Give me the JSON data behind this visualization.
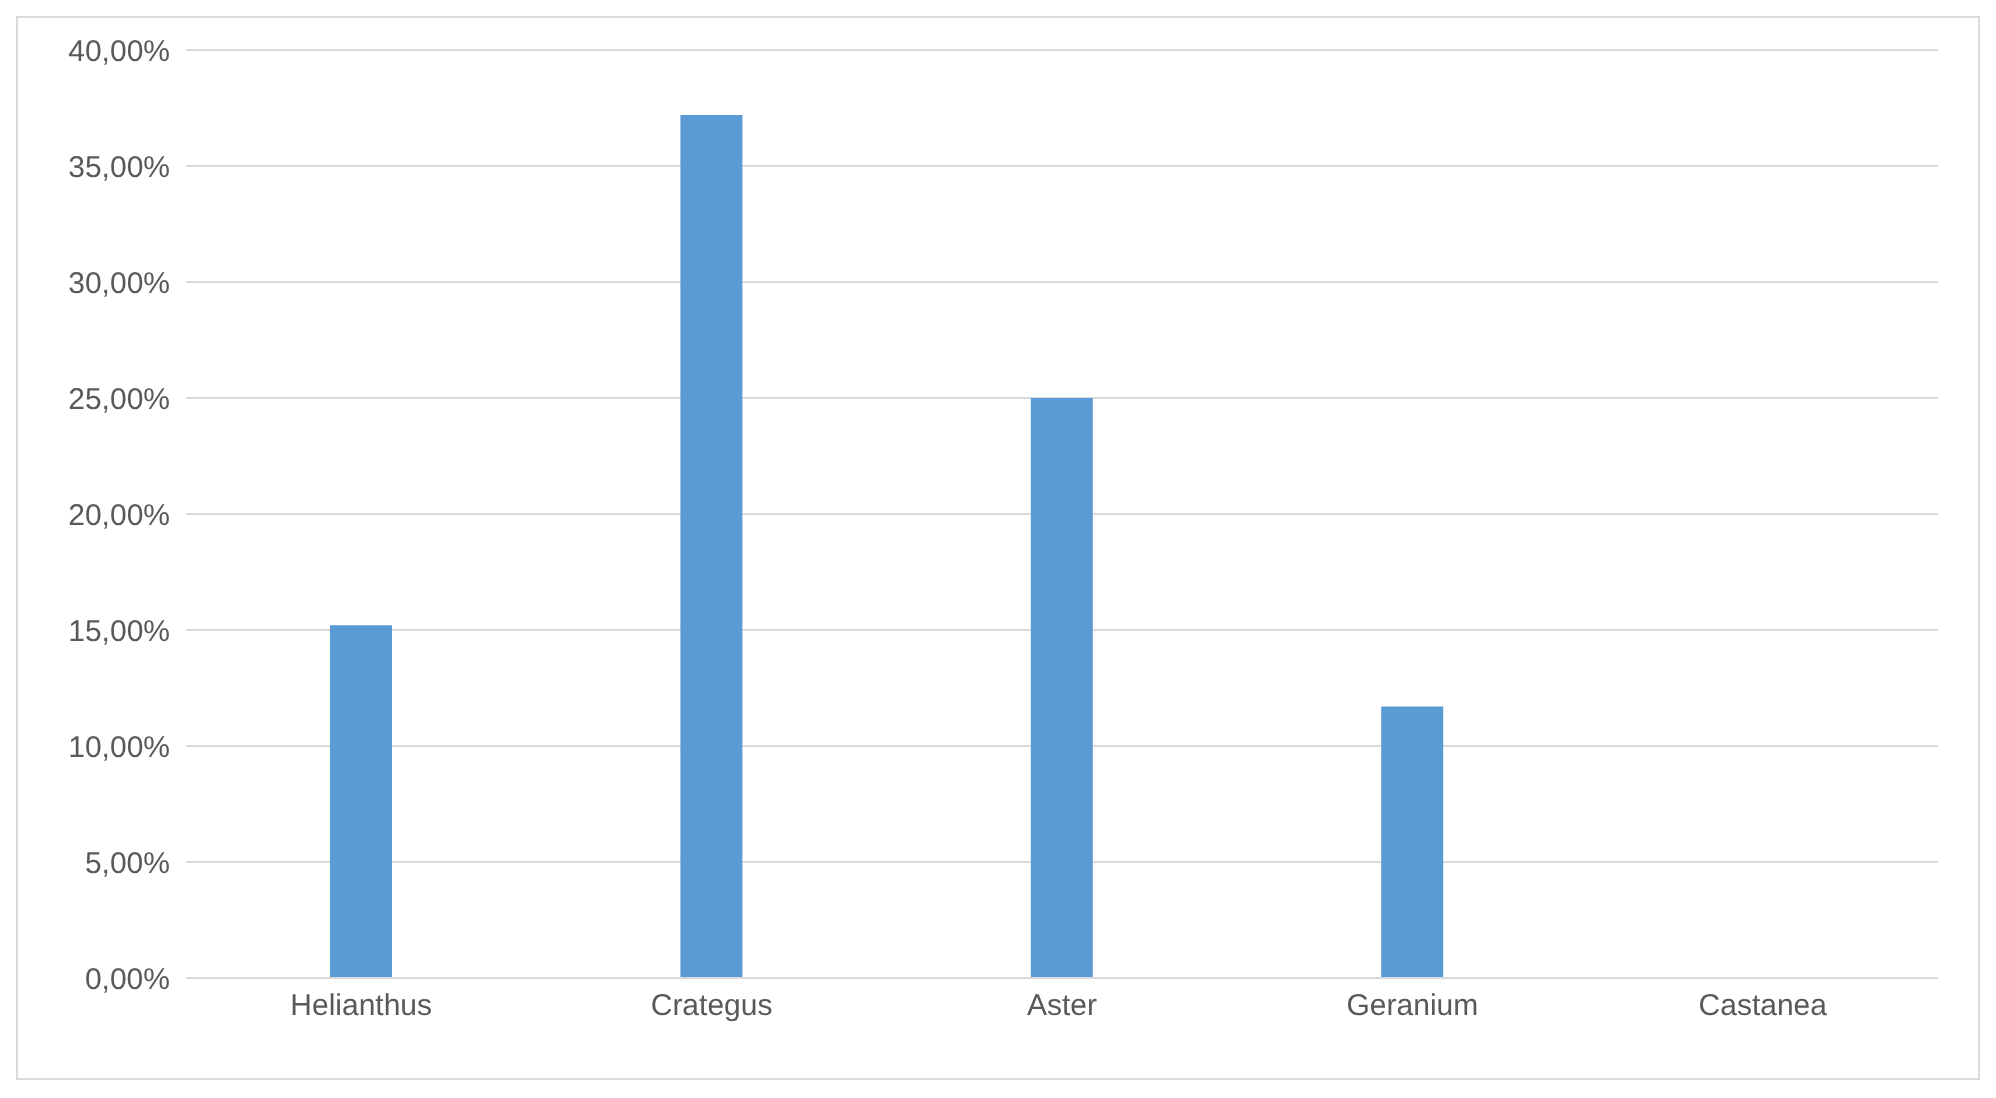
{
  "chart_data": {
    "type": "bar",
    "categories": [
      "Helianthus",
      "Crategus",
      "Aster",
      "Geranium",
      "Castanea"
    ],
    "values": [
      15.2,
      37.2,
      25.0,
      11.7,
      0
    ],
    "color": "#5b9bd5",
    "ylim": [
      0,
      40
    ],
    "yticks": [
      {
        "value": 0,
        "label": "0,00%"
      },
      {
        "value": 5,
        "label": "5,00%"
      },
      {
        "value": 10,
        "label": "10,00%"
      },
      {
        "value": 15,
        "label": "15,00%"
      },
      {
        "value": 20,
        "label": "20,00%"
      },
      {
        "value": 25,
        "label": "25,00%"
      },
      {
        "value": 30,
        "label": "30,00%"
      },
      {
        "value": 35,
        "label": "35,00%"
      },
      {
        "value": 40,
        "label": "40,00%"
      }
    ],
    "grid": "y"
  }
}
